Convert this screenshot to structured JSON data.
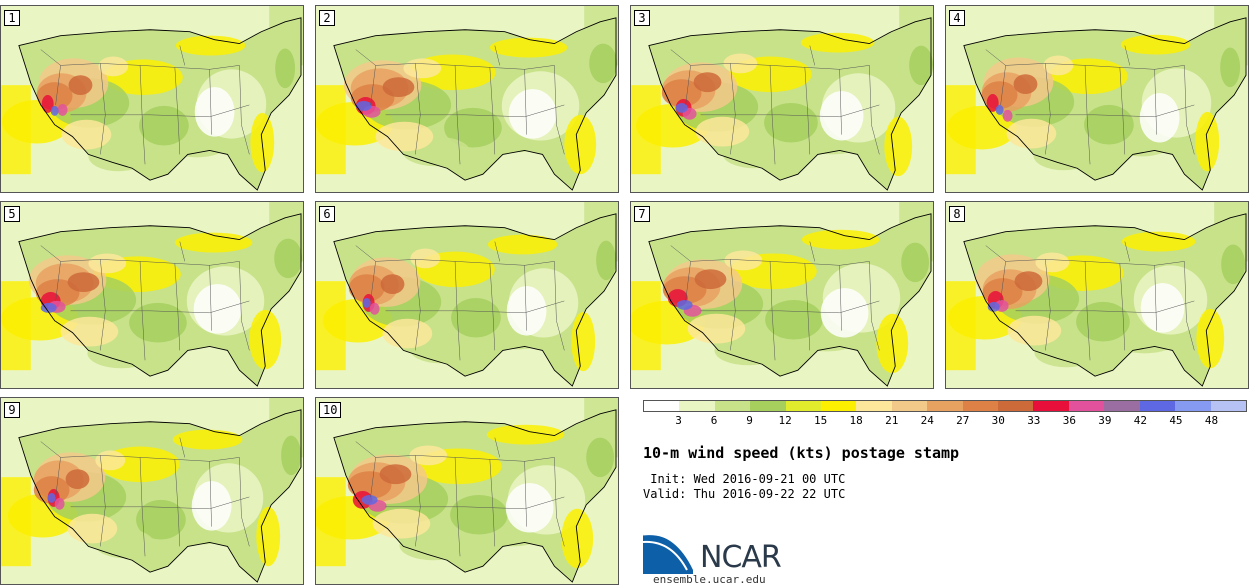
{
  "stamps": [
    {
      "label": "1"
    },
    {
      "label": "2"
    },
    {
      "label": "3"
    },
    {
      "label": "4"
    },
    {
      "label": "5"
    },
    {
      "label": "6"
    },
    {
      "label": "7"
    },
    {
      "label": "8"
    },
    {
      "label": "9"
    },
    {
      "label": "10"
    }
  ],
  "legend": {
    "ticks": [
      "3",
      "6",
      "9",
      "12",
      "15",
      "18",
      "21",
      "24",
      "27",
      "30",
      "33",
      "36",
      "39",
      "42",
      "45",
      "48"
    ],
    "colors": [
      "#ffffff",
      "#eaf5c4",
      "#c8e28a",
      "#a6cf5e",
      "#e0ec2c",
      "#fcf000",
      "#fce79a",
      "#f3c98a",
      "#e7a160",
      "#dd8146",
      "#cd6a3a",
      "#e8103a",
      "#e2529c",
      "#9a6ea0",
      "#5e68e2",
      "#869af2",
      "#b6c2f3"
    ]
  },
  "title": "10-m wind speed (kts) postage stamp",
  "init_line": " Init: Wed 2016-09-21 00 UTC",
  "valid_line": "Valid: Thu 2016-09-22 22 UTC",
  "logo": {
    "text": "NCAR",
    "color": "#0d5fa8"
  },
  "website": "ensemble.ucar.edu"
}
